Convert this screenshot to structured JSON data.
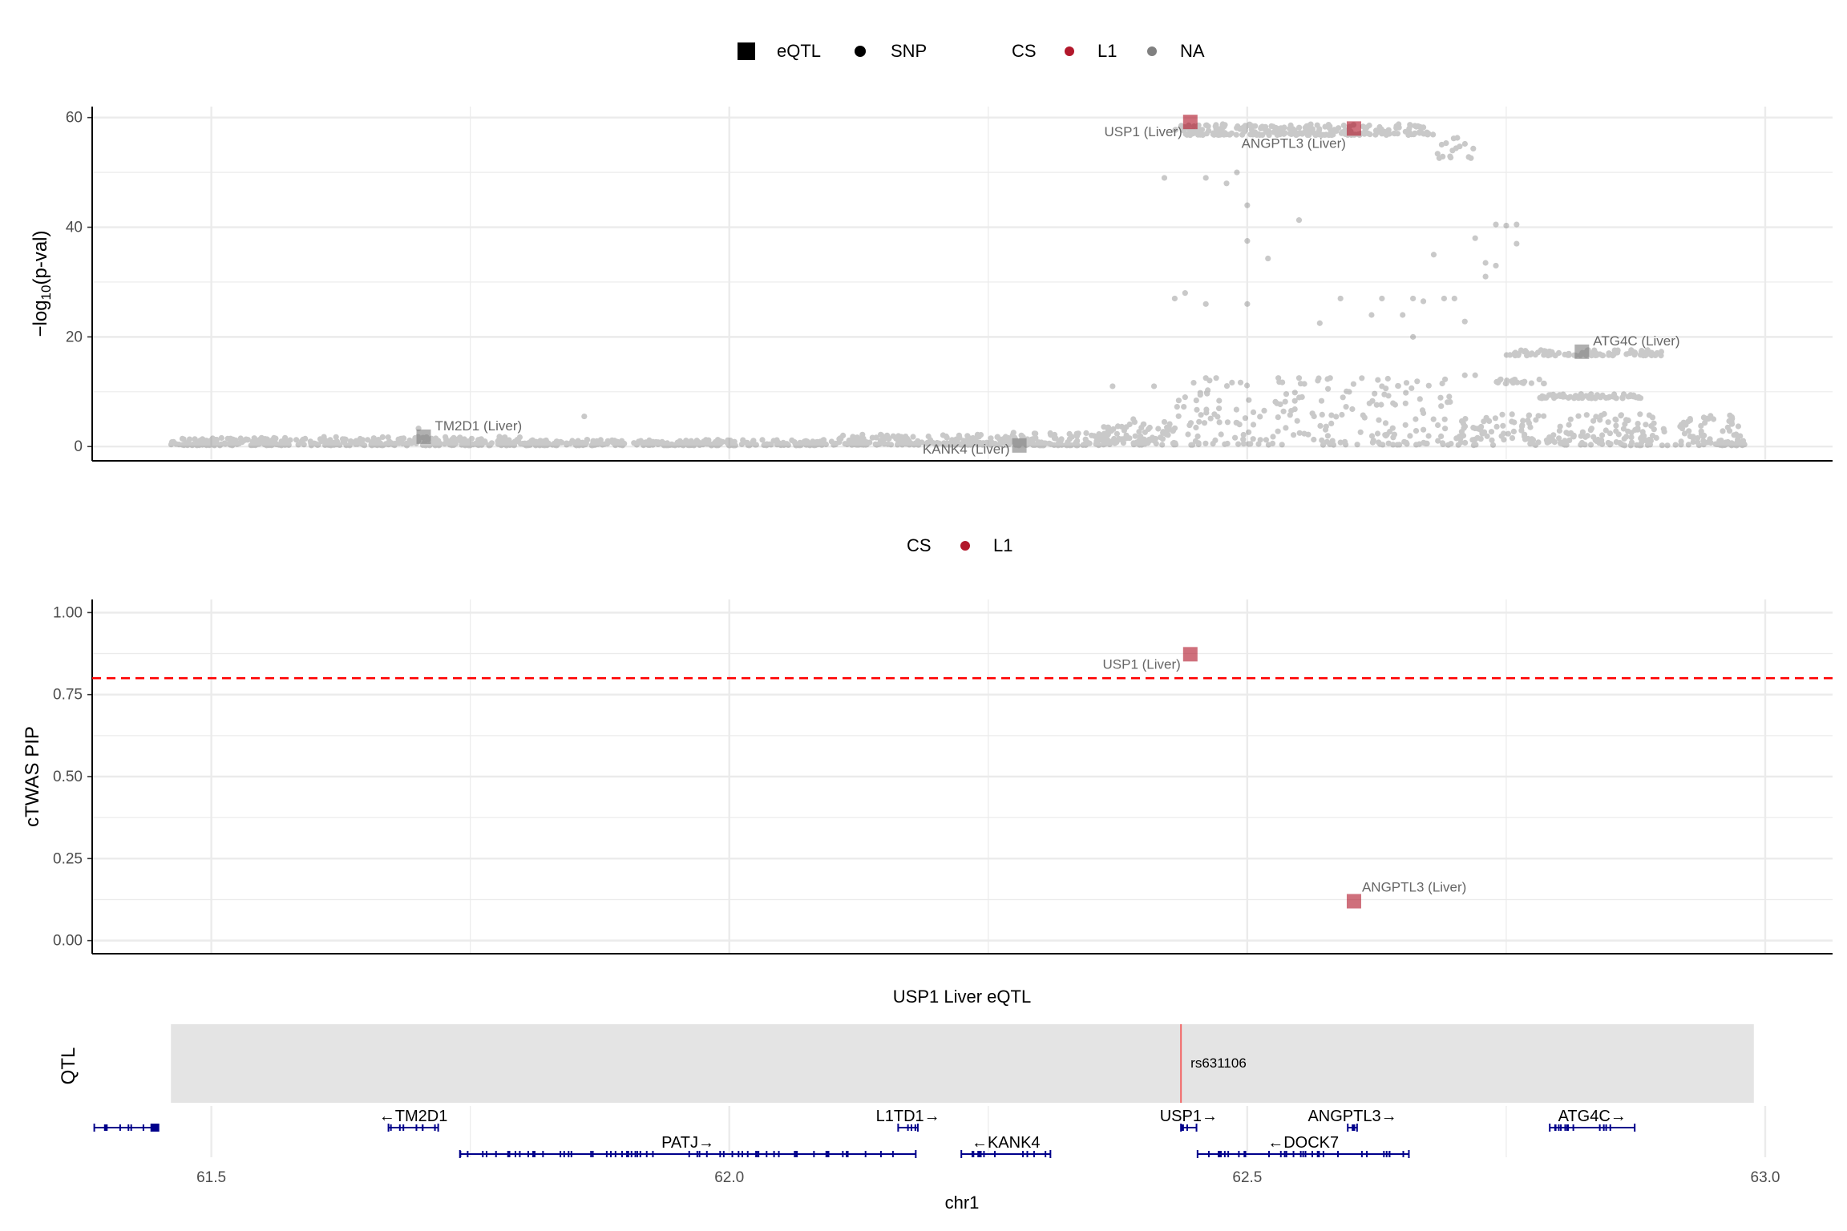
{
  "chart_data": [
    {
      "type": "scatter",
      "panel": "gwas",
      "legend": {
        "shape_items": [
          {
            "label": "eQTL",
            "shape": "square"
          },
          {
            "label": "SNP",
            "shape": "circle"
          }
        ],
        "cs_title": "CS",
        "cs_items": [
          {
            "label": "L1",
            "color": "#b2182b"
          },
          {
            "label": "NA",
            "color": "#808080"
          }
        ],
        "placement": "top"
      },
      "ylabel": "−log10(p-val)",
      "xlim": [
        61.385,
        63.065
      ],
      "ylim": [
        -2.6,
        62
      ],
      "yticks": [
        0,
        20,
        40,
        60
      ],
      "grid": true,
      "snp_color": "#808080",
      "snp_segments": [
        {
          "x0": 61.46,
          "x1": 61.6,
          "y0": 0.2,
          "y1": 1.6,
          "n": 140
        },
        {
          "x0": 61.6,
          "x1": 61.8,
          "y0": 0.2,
          "y1": 1.8,
          "n": 200
        },
        {
          "x0": 61.8,
          "x1": 62.1,
          "y0": 0.2,
          "y1": 1.3,
          "n": 280
        },
        {
          "x0": 62.1,
          "x1": 62.27,
          "y0": 0.3,
          "y1": 2.2,
          "n": 180
        },
        {
          "x0": 62.27,
          "x1": 62.36,
          "y0": 0.2,
          "y1": 2.6,
          "n": 90
        },
        {
          "x0": 62.36,
          "x1": 62.43,
          "y0": 0.3,
          "y1": 4.5,
          "n": 90
        },
        {
          "x0": 62.43,
          "x1": 62.7,
          "y0": 0.3,
          "y1": 12.5,
          "n": 210
        },
        {
          "x0": 62.7,
          "x1": 62.98,
          "y0": 0.2,
          "y1": 6,
          "n": 260
        },
        {
          "x0": 62.43,
          "x1": 62.68,
          "y0": 56.8,
          "y1": 58.8,
          "n": 230
        },
        {
          "x0": 62.68,
          "x1": 62.72,
          "y0": 52.5,
          "y1": 56.5,
          "n": 16
        },
        {
          "x0": 62.75,
          "x1": 62.9,
          "y0": 16.6,
          "y1": 17.6,
          "n": 90
        },
        {
          "x0": 62.78,
          "x1": 62.88,
          "y0": 8.8,
          "y1": 9.6,
          "n": 60
        },
        {
          "x0": 62.74,
          "x1": 62.79,
          "y0": 11.5,
          "y1": 12.3,
          "n": 20
        }
      ],
      "snp_points": [
        {
          "x": 61.7,
          "y": 3.3
        },
        {
          "x": 61.86,
          "y": 5.5
        },
        {
          "x": 62.37,
          "y": 11
        },
        {
          "x": 62.41,
          "y": 11
        },
        {
          "x": 62.39,
          "y": 5
        },
        {
          "x": 62.42,
          "y": 4.5
        },
        {
          "x": 62.44,
          "y": 9
        },
        {
          "x": 62.43,
          "y": 27
        },
        {
          "x": 62.44,
          "y": 28
        },
        {
          "x": 62.46,
          "y": 26
        },
        {
          "x": 62.5,
          "y": 26
        },
        {
          "x": 62.42,
          "y": 49
        },
        {
          "x": 62.46,
          "y": 49
        },
        {
          "x": 62.48,
          "y": 48
        },
        {
          "x": 62.49,
          "y": 50
        },
        {
          "x": 62.5,
          "y": 44
        },
        {
          "x": 62.5,
          "y": 37.5
        },
        {
          "x": 62.52,
          "y": 34.3
        },
        {
          "x": 62.55,
          "y": 41.3
        },
        {
          "x": 62.59,
          "y": 27
        },
        {
          "x": 62.57,
          "y": 22.5
        },
        {
          "x": 62.62,
          "y": 24
        },
        {
          "x": 62.63,
          "y": 27
        },
        {
          "x": 62.65,
          "y": 24
        },
        {
          "x": 62.66,
          "y": 27
        },
        {
          "x": 62.67,
          "y": 26.5
        },
        {
          "x": 62.69,
          "y": 27
        },
        {
          "x": 62.7,
          "y": 27
        },
        {
          "x": 62.66,
          "y": 20
        },
        {
          "x": 62.71,
          "y": 22.8
        },
        {
          "x": 62.68,
          "y": 35
        },
        {
          "x": 62.72,
          "y": 38
        },
        {
          "x": 62.73,
          "y": 33.5
        },
        {
          "x": 62.73,
          "y": 31
        },
        {
          "x": 62.74,
          "y": 33
        },
        {
          "x": 62.74,
          "y": 40.5
        },
        {
          "x": 62.75,
          "y": 40.3
        },
        {
          "x": 62.76,
          "y": 37
        },
        {
          "x": 62.76,
          "y": 40.5
        },
        {
          "x": 62.46,
          "y": 12.5
        },
        {
          "x": 62.47,
          "y": 12.5
        },
        {
          "x": 62.53,
          "y": 12.5
        },
        {
          "x": 62.55,
          "y": 12.5
        },
        {
          "x": 62.58,
          "y": 12.5
        },
        {
          "x": 62.63,
          "y": 11
        },
        {
          "x": 62.71,
          "y": 13
        },
        {
          "x": 62.72,
          "y": 13
        }
      ],
      "genes": [
        {
          "label": "USP1 (Liver)",
          "x": 62.445,
          "y": 59.2,
          "cs": "L1",
          "label_dx": -10,
          "label_dy": 18,
          "anchor": "end"
        },
        {
          "label": "ANGPTL3 (Liver)",
          "x": 62.603,
          "y": 58.0,
          "cs": "L1",
          "label_dx": -10,
          "label_dy": 24,
          "anchor": "end"
        },
        {
          "label": "ATG4C (Liver)",
          "x": 62.823,
          "y": 17.3,
          "cs": "NA",
          "label_dx": 14,
          "label_dy": -8,
          "anchor": "start"
        },
        {
          "label": "TM2D1 (Liver)",
          "x": 61.705,
          "y": 1.8,
          "cs": "NA",
          "label_dx": 14,
          "label_dy": -8,
          "anchor": "start"
        },
        {
          "label": "KANK4 (Liver)",
          "x": 62.28,
          "y": 0.2,
          "cs": "NA",
          "label_dx": -12,
          "label_dy": 10,
          "anchor": "end"
        }
      ]
    },
    {
      "type": "scatter",
      "panel": "pip",
      "legend": {
        "cs_title": "CS",
        "cs_items": [
          {
            "label": "L1",
            "color": "#b2182b"
          }
        ],
        "placement": "top"
      },
      "ylabel": "cTWAS PIP",
      "xlim": [
        61.385,
        63.065
      ],
      "ylim": [
        -0.04,
        1.04
      ],
      "yticks": [
        "0.00",
        "0.25",
        "0.50",
        "0.75",
        "1.00"
      ],
      "threshold": 0.8,
      "threshold_color": "#ff0000",
      "grid": true,
      "points": [
        {
          "label": "USP1 (Liver)",
          "x": 62.445,
          "y": 0.873,
          "cs": "L1",
          "label_dx": -12,
          "label_dy": 18,
          "anchor": "end"
        },
        {
          "label": "ANGPTL3 (Liver)",
          "x": 62.603,
          "y": 0.12,
          "cs": "L1",
          "label_dx": 10,
          "label_dy": -12,
          "anchor": "start"
        }
      ]
    },
    {
      "type": "track",
      "panel": "qtl",
      "title": "USP1 Liver eQTL",
      "ylabel": "QTL",
      "band": {
        "x0": 61.461,
        "x1": 62.989
      },
      "snp": {
        "label": "rs631106",
        "x": 62.436,
        "color": "#ff0000"
      }
    },
    {
      "type": "gene-track",
      "panel": "genes",
      "xlabel": "chr1",
      "xlim": [
        61.385,
        63.065
      ],
      "xticks": [
        "61.5",
        "62.0",
        "62.5",
        "63.0"
      ],
      "gene_color": "#00008b",
      "genes": [
        {
          "label": "",
          "x0": 61.387,
          "x1": 61.449,
          "row": 0
        },
        {
          "label": "←TM2D1",
          "x0": 61.671,
          "x1": 61.719,
          "row": 0
        },
        {
          "label": "PATJ→",
          "x0": 61.74,
          "x1": 62.18,
          "row": 1
        },
        {
          "label": "L1TD1→",
          "x0": 62.163,
          "x1": 62.182,
          "row": 0
        },
        {
          "label": "←KANK4",
          "x0": 62.224,
          "x1": 62.31,
          "row": 1
        },
        {
          "label": "USP1→",
          "x0": 62.436,
          "x1": 62.451,
          "row": 0
        },
        {
          "label": "←DOCK7",
          "x0": 62.452,
          "x1": 62.656,
          "row": 1
        },
        {
          "label": "ANGPTL3→",
          "x0": 62.597,
          "x1": 62.606,
          "row": 0
        },
        {
          "label": "ATG4C→",
          "x0": 62.792,
          "x1": 62.874,
          "row": 0
        }
      ]
    }
  ]
}
